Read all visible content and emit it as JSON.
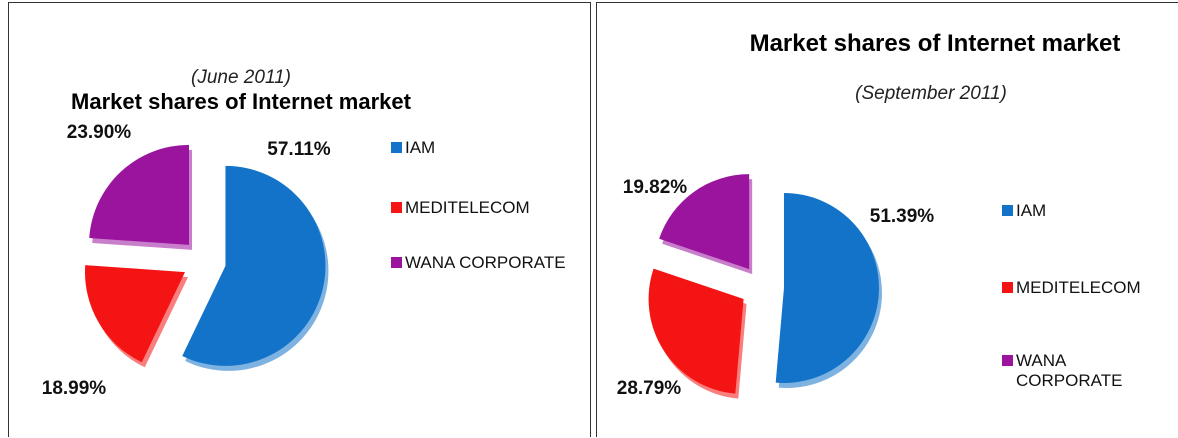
{
  "chart_data": [
    {
      "type": "pie",
      "title": "Market shares of Internet market",
      "subtitle": "(June 2011)",
      "categories": [
        "IAM",
        "MEDITELECOM",
        "WANA CORPORATE"
      ],
      "values": [
        57.11,
        18.99,
        23.9
      ],
      "value_labels": [
        "57.11%",
        "18.99%",
        "23.90%"
      ],
      "colors": [
        "#1273c9",
        "#f41414",
        "#9a149e"
      ]
    },
    {
      "type": "pie",
      "title": "Market shares of Internet market",
      "subtitle": "(September 2011)",
      "categories": [
        "IAM",
        "MEDITELECOM",
        "WANA CORPORATE"
      ],
      "values": [
        51.39,
        28.79,
        19.82
      ],
      "value_labels": [
        "51.39%",
        "28.79%",
        "19.82%"
      ],
      "colors": [
        "#1273c9",
        "#f41414",
        "#9a149e"
      ]
    }
  ]
}
